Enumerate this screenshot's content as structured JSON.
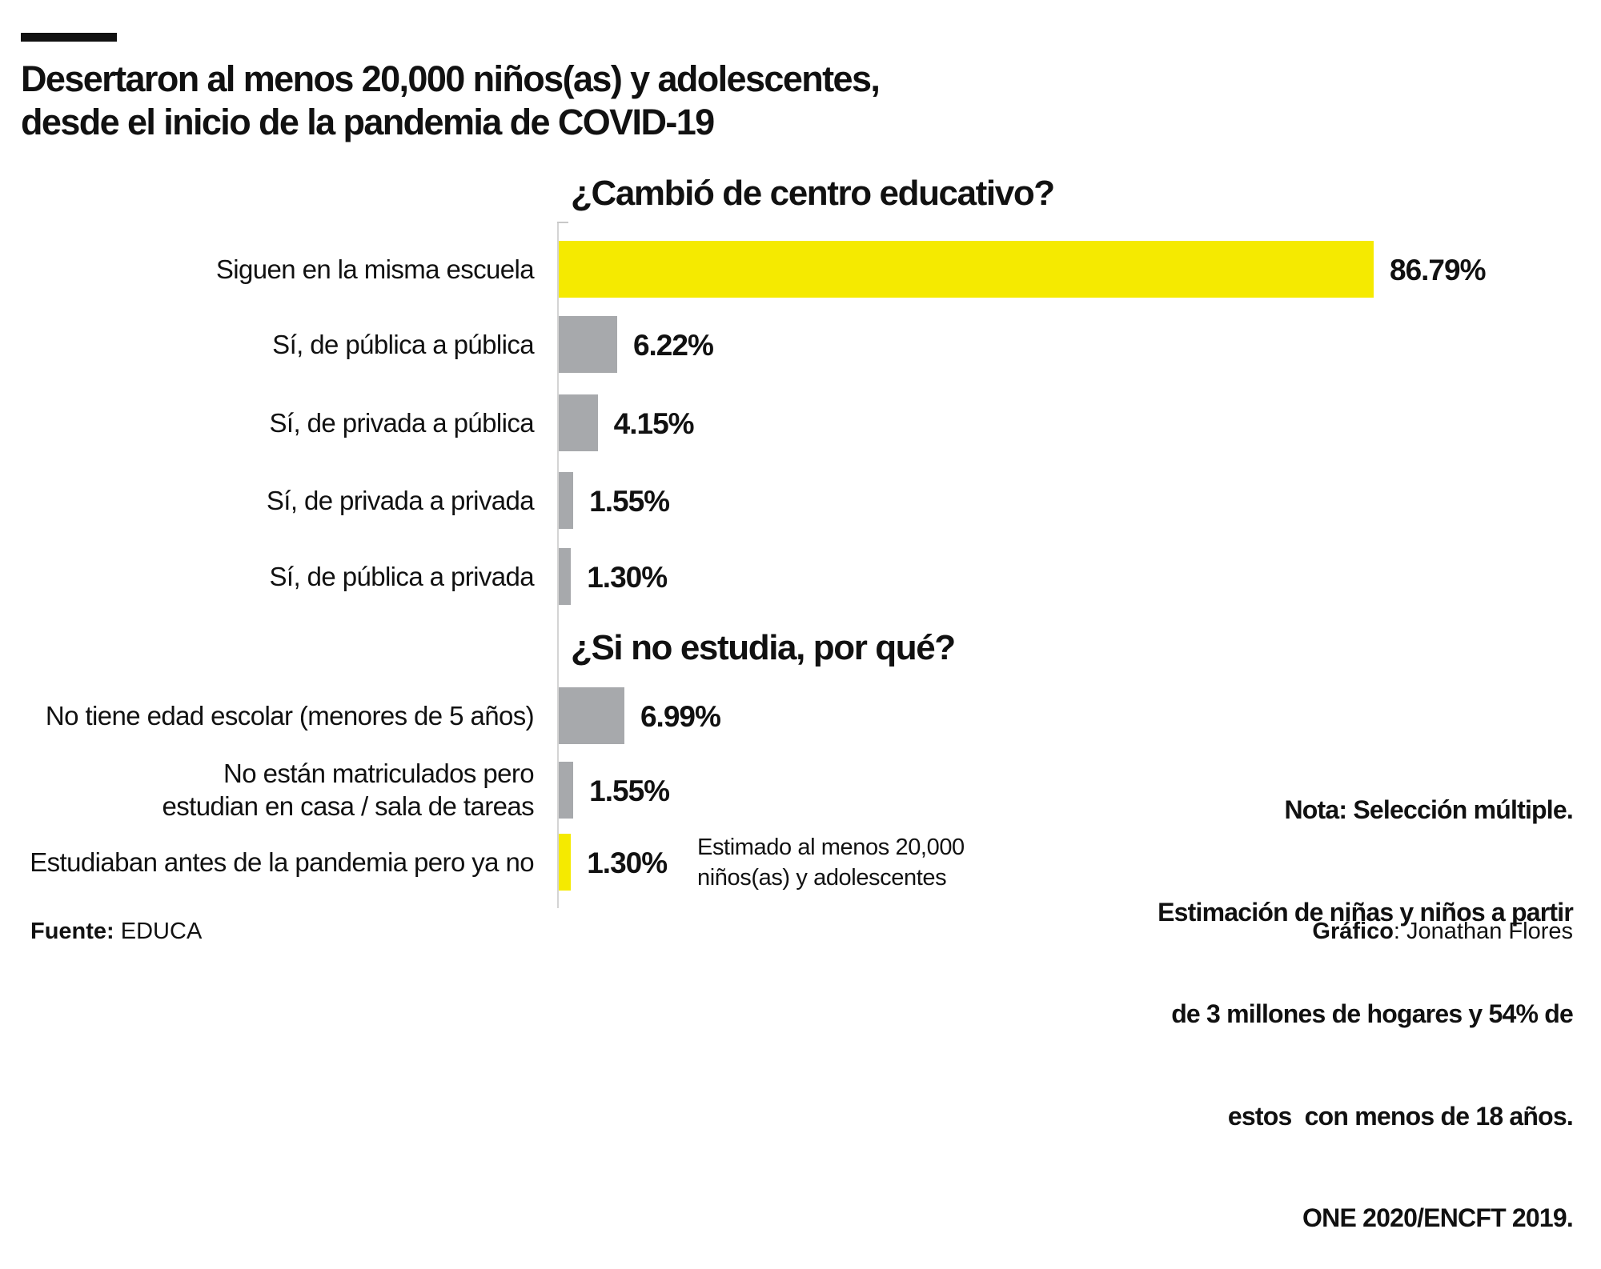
{
  "title_lines": [
    "Desertaron al menos 20,000 niños(as) y adolescentes,",
    "desde el inicio de la pandemia de COVID-19"
  ],
  "colors": {
    "highlight": "#f5ea00",
    "default": "#a7a9ac"
  },
  "chart_data": [
    {
      "type": "bar",
      "orientation": "horizontal",
      "title": "¿Cambió de centro educativo?",
      "categories": [
        "Siguen en la misma escuela",
        "Sí, de pública a pública",
        "Sí, de privada a pública",
        "Sí, de privada a privada",
        "Sí, de pública a privada"
      ],
      "values": [
        86.79,
        6.22,
        4.15,
        1.55,
        1.3
      ],
      "labels": [
        "86.79%",
        "6.22%",
        "4.15%",
        "1.55%",
        "1.30%"
      ],
      "highlight": [
        true,
        false,
        false,
        false,
        false
      ],
      "unit": "%"
    },
    {
      "type": "bar",
      "orientation": "horizontal",
      "title": "¿Si no estudia, por qué?",
      "categories": [
        "No tiene edad escolar (menores de 5 años)",
        "No están matriculados pero\nestudian en casa / sala de tareas",
        "Estudiaban antes de la pandemia pero ya no"
      ],
      "values": [
        6.99,
        1.55,
        1.3
      ],
      "labels": [
        "6.99%",
        "1.55%",
        "1.30%"
      ],
      "highlight": [
        false,
        false,
        true
      ],
      "unit": "%",
      "annotation": [
        "Estimado al menos 20,000",
        "niños(as) y adolescentes"
      ]
    }
  ],
  "note_lines": [
    "Nota: Selección múltiple.",
    "Estimación de niñas y niños a partir",
    "de 3 millones de hogares y 54% de",
    "estos  con menos de 18 años.",
    "ONE 2020/ENCFT 2019."
  ],
  "footer": {
    "source_label": "Fuente:",
    "source_value": " EDUCA",
    "credit_label": "Gráfico",
    "credit_value": ": Jonathan Flores"
  }
}
